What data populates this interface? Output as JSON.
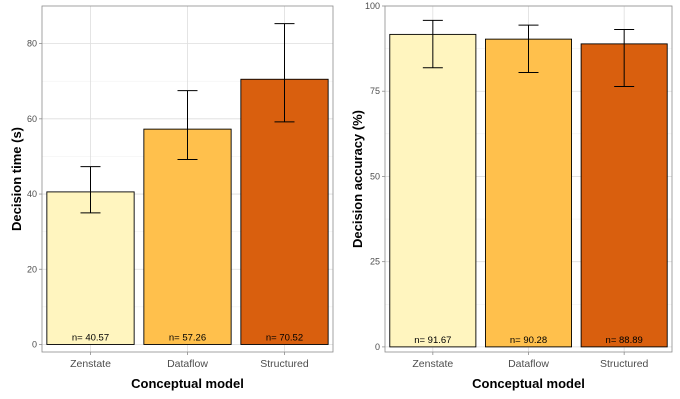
{
  "colors": {
    "zenstate": "#FFF5BF",
    "dataflow": "#FFC04C",
    "structured": "#D95F0E"
  },
  "chart_data": [
    {
      "type": "bar",
      "xlabel": "Conceptual model",
      "ylabel": "Decision time (s)",
      "categories": [
        "Zenstate",
        "Dataflow",
        "Structured"
      ],
      "values": [
        40.57,
        57.26,
        70.52
      ],
      "error_low": [
        35.0,
        49.2,
        59.2
      ],
      "error_high": [
        47.3,
        67.5,
        85.3
      ],
      "bar_labels": [
        "n= 40.57",
        "n= 57.26",
        "n= 70.52"
      ],
      "ylim": [
        -2,
        90
      ],
      "yticks": [
        0,
        20,
        40,
        60,
        80
      ],
      "ytick_labels": [
        "0",
        "20",
        "40",
        "60",
        "80"
      ],
      "grid": true,
      "legend": "none"
    },
    {
      "type": "bar",
      "xlabel": "Conceptual model",
      "ylabel": "Decision accuracy (%)",
      "categories": [
        "Zenstate",
        "Dataflow",
        "Structured"
      ],
      "values": [
        91.67,
        90.28,
        88.89
      ],
      "error_low": [
        81.9,
        80.5,
        76.4
      ],
      "error_high": [
        95.8,
        94.4,
        93.1
      ],
      "bar_labels": [
        "n= 91.67",
        "n= 90.28",
        "n= 88.89"
      ],
      "ylim": [
        -1.5,
        100
      ],
      "yticks": [
        0,
        25,
        50,
        75,
        100
      ],
      "ytick_labels": [
        "0",
        "25",
        "50",
        "75",
        "100"
      ],
      "grid": true,
      "legend": "none"
    }
  ]
}
